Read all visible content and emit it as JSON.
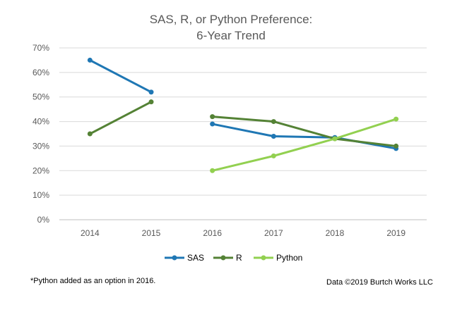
{
  "chart_data": {
    "type": "line",
    "title": "SAS, R, or Python Preference:",
    "subtitle": "6-Year Trend",
    "categories": [
      "2014",
      "2015",
      "2016",
      "2017",
      "2018",
      "2019"
    ],
    "ylim": [
      0,
      70
    ],
    "yticks": [
      0,
      10,
      20,
      30,
      40,
      50,
      60,
      70
    ],
    "ytick_labels": [
      "0%",
      "10%",
      "20%",
      "30%",
      "40%",
      "50%",
      "60%",
      "70%"
    ],
    "grid": true,
    "legend_position": "bottom",
    "gap_between": [
      "2015",
      "2016"
    ],
    "series": [
      {
        "name": "SAS",
        "color": "#1f77b4",
        "values": [
          65,
          52,
          39,
          34,
          33.5,
          29
        ]
      },
      {
        "name": "R",
        "color": "#548235",
        "values": [
          35,
          48,
          42,
          40,
          33,
          30
        ]
      },
      {
        "name": "Python",
        "color": "#92d050",
        "values": [
          null,
          null,
          20,
          26,
          33,
          41
        ]
      }
    ]
  },
  "footnote": "*Python added as an option in 2016.",
  "credit": "Data ©2019 Burtch Works LLC"
}
